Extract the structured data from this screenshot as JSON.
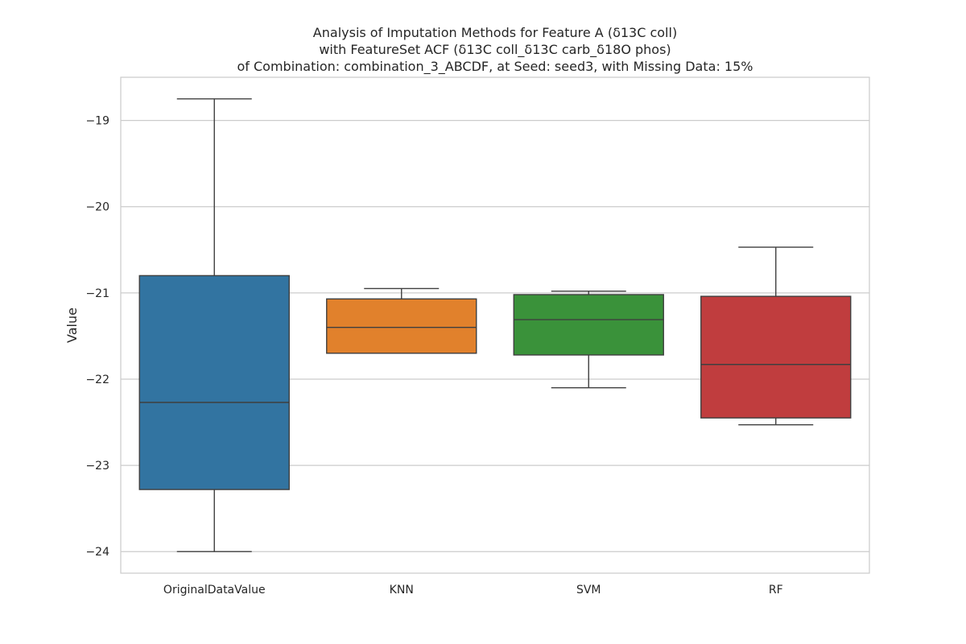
{
  "chart_data": {
    "type": "box",
    "title": [
      "Analysis of Imputation Methods for Feature A (δ13C coll)",
      "with FeatureSet ACF (δ13C coll_δ13C carb_δ18O phos)",
      "of Combination: combination_3_ABCDF, at Seed: seed3, with Missing Data: 15%"
    ],
    "xlabel": "",
    "ylabel": "Value",
    "ylim": [
      -24.25,
      -18.5
    ],
    "yticks": [
      -24,
      -23,
      -22,
      -21,
      -20,
      -19
    ],
    "ytick_labels": [
      "−24",
      "−23",
      "−22",
      "−21",
      "−20",
      "−19"
    ],
    "grid": true,
    "categories": [
      "OriginalDataValue",
      "KNN",
      "SVM",
      "RF"
    ],
    "boxes": [
      {
        "category": "OriginalDataValue",
        "whisker_low": -24.0,
        "q1": -23.28,
        "median": -22.27,
        "q3": -20.8,
        "whisker_high": -18.75,
        "color": "#3274a1"
      },
      {
        "category": "KNN",
        "whisker_low": -21.7,
        "q1": -21.7,
        "median": -21.4,
        "q3": -21.07,
        "whisker_high": -20.95,
        "color": "#e1812c"
      },
      {
        "category": "SVM",
        "whisker_low": -22.1,
        "q1": -21.72,
        "median": -21.31,
        "q3": -21.02,
        "whisker_high": -20.98,
        "color": "#3a923a"
      },
      {
        "category": "RF",
        "whisker_low": -22.53,
        "q1": -22.45,
        "median": -21.83,
        "q3": -21.04,
        "whisker_high": -20.47,
        "color": "#c03d3e"
      }
    ]
  }
}
